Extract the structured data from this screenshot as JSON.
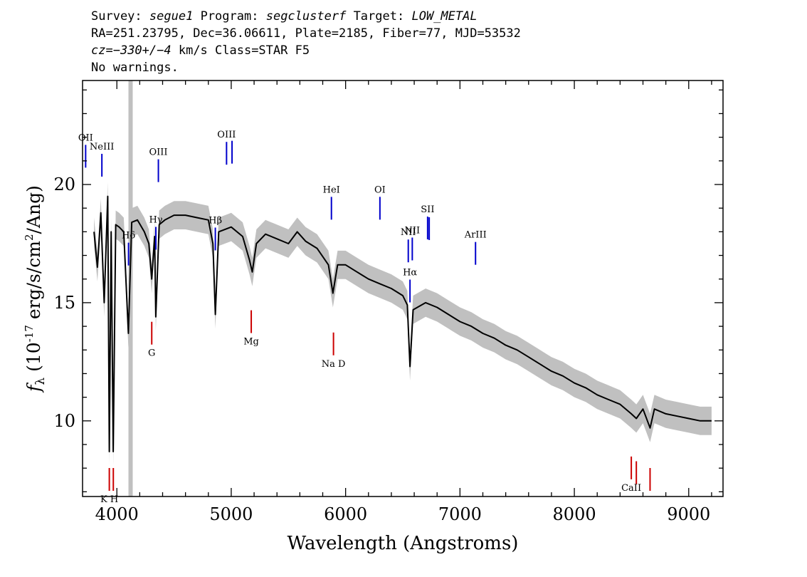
{
  "header": {
    "survey_label": "Survey:",
    "survey": "segue1",
    "program_label": "Program:",
    "program": "segclusterf",
    "target_label": "Target:",
    "target": "LOW_METAL",
    "line2": "RA=251.23795, Dec=36.06611, Plate=2185, Fiber=77, MJD=53532",
    "cz_prefix": "cz=",
    "cz_value": "−330+/−4",
    "cz_suffix": " km/s Class=STAR F5",
    "warnings": "No warnings."
  },
  "chart_data": {
    "type": "line",
    "xlabel": "Wavelength (Angstroms)",
    "ylabel": "f_λ (10^-17 erg/s/cm^2/Ang)",
    "xlim": [
      3700,
      9300
    ],
    "ylim": [
      6.8,
      24.4
    ],
    "x_ticks": [
      4000,
      5000,
      6000,
      7000,
      8000,
      9000
    ],
    "y_ticks": [
      10,
      15,
      20
    ],
    "grid": false,
    "colors": {
      "flux": "#000000",
      "noise_band": "#c0c0c0",
      "emission": "#0000cc",
      "absorption": "#cc0000"
    },
    "flux_points": [
      [
        3800,
        18.0
      ],
      [
        3830,
        16.5
      ],
      [
        3860,
        18.8
      ],
      [
        3889,
        15.0
      ],
      [
        3920,
        19.5
      ],
      [
        3934,
        8.7
      ],
      [
        3950,
        18.0
      ],
      [
        3968,
        8.7
      ],
      [
        3990,
        18.3
      ],
      [
        4020,
        18.2
      ],
      [
        4060,
        18.0
      ],
      [
        4101,
        13.7
      ],
      [
        4130,
        18.4
      ],
      [
        4180,
        18.5
      ],
      [
        4240,
        18.0
      ],
      [
        4280,
        17.5
      ],
      [
        4305,
        16.0
      ],
      [
        4330,
        17.8
      ],
      [
        4340,
        14.4
      ],
      [
        4370,
        18.3
      ],
      [
        4420,
        18.5
      ],
      [
        4500,
        18.7
      ],
      [
        4600,
        18.7
      ],
      [
        4700,
        18.6
      ],
      [
        4800,
        18.5
      ],
      [
        4840,
        17.5
      ],
      [
        4861,
        14.5
      ],
      [
        4890,
        18.0
      ],
      [
        5000,
        18.2
      ],
      [
        5100,
        17.8
      ],
      [
        5160,
        16.8
      ],
      [
        5184,
        16.3
      ],
      [
        5220,
        17.5
      ],
      [
        5300,
        17.9
      ],
      [
        5400,
        17.7
      ],
      [
        5500,
        17.5
      ],
      [
        5577,
        18.0
      ],
      [
        5650,
        17.6
      ],
      [
        5750,
        17.3
      ],
      [
        5850,
        16.6
      ],
      [
        5889,
        15.4
      ],
      [
        5930,
        16.6
      ],
      [
        6000,
        16.6
      ],
      [
        6100,
        16.3
      ],
      [
        6200,
        16.0
      ],
      [
        6300,
        15.8
      ],
      [
        6400,
        15.6
      ],
      [
        6500,
        15.3
      ],
      [
        6540,
        14.9
      ],
      [
        6563,
        12.3
      ],
      [
        6590,
        14.7
      ],
      [
        6700,
        15.0
      ],
      [
        6800,
        14.8
      ],
      [
        6900,
        14.5
      ],
      [
        7000,
        14.2
      ],
      [
        7100,
        14.0
      ],
      [
        7200,
        13.7
      ],
      [
        7300,
        13.5
      ],
      [
        7400,
        13.2
      ],
      [
        7500,
        13.0
      ],
      [
        7600,
        12.7
      ],
      [
        7700,
        12.4
      ],
      [
        7800,
        12.1
      ],
      [
        7900,
        11.9
      ],
      [
        8000,
        11.6
      ],
      [
        8100,
        11.4
      ],
      [
        8200,
        11.1
      ],
      [
        8300,
        10.9
      ],
      [
        8400,
        10.7
      ],
      [
        8498,
        10.3
      ],
      [
        8542,
        10.1
      ],
      [
        8600,
        10.5
      ],
      [
        8662,
        9.7
      ],
      [
        8700,
        10.5
      ],
      [
        8800,
        10.3
      ],
      [
        8900,
        10.2
      ],
      [
        9000,
        10.1
      ],
      [
        9100,
        10.0
      ],
      [
        9200,
        10.0
      ]
    ],
    "emission_lines": [
      {
        "label": "OII",
        "x": 3727
      },
      {
        "label": "NeIII",
        "x": 3869
      },
      {
        "label": "Hδ",
        "x": 4102
      },
      {
        "label": "Hγ",
        "x": 4341
      },
      {
        "label": "OIII",
        "x": 4363
      },
      {
        "label": "Hβ",
        "x": 4861
      },
      {
        "label": "OIII",
        "x": 4959
      },
      {
        "label": "",
        "x": 5007
      },
      {
        "label": "HeI",
        "x": 5876
      },
      {
        "label": "OI",
        "x": 6300
      },
      {
        "label": "NII",
        "x": 6548
      },
      {
        "label": "Hα",
        "x": 6563
      },
      {
        "label": "NII",
        "x": 6583
      },
      {
        "label": "SII",
        "x": 6717
      },
      {
        "label": "",
        "x": 6731
      },
      {
        "label": "ArIII",
        "x": 7136
      }
    ],
    "absorption_lines": [
      {
        "label": "K H",
        "x": 3934
      },
      {
        "label": "",
        "x": 3969
      },
      {
        "label": "G",
        "x": 4305
      },
      {
        "label": "Mg",
        "x": 5175
      },
      {
        "label": "Na D",
        "x": 5894
      },
      {
        "label": "CaII",
        "x": 8498
      },
      {
        "label": "",
        "x": 8542
      },
      {
        "label": "",
        "x": 8662
      }
    ],
    "masked_region_x": 4120
  }
}
